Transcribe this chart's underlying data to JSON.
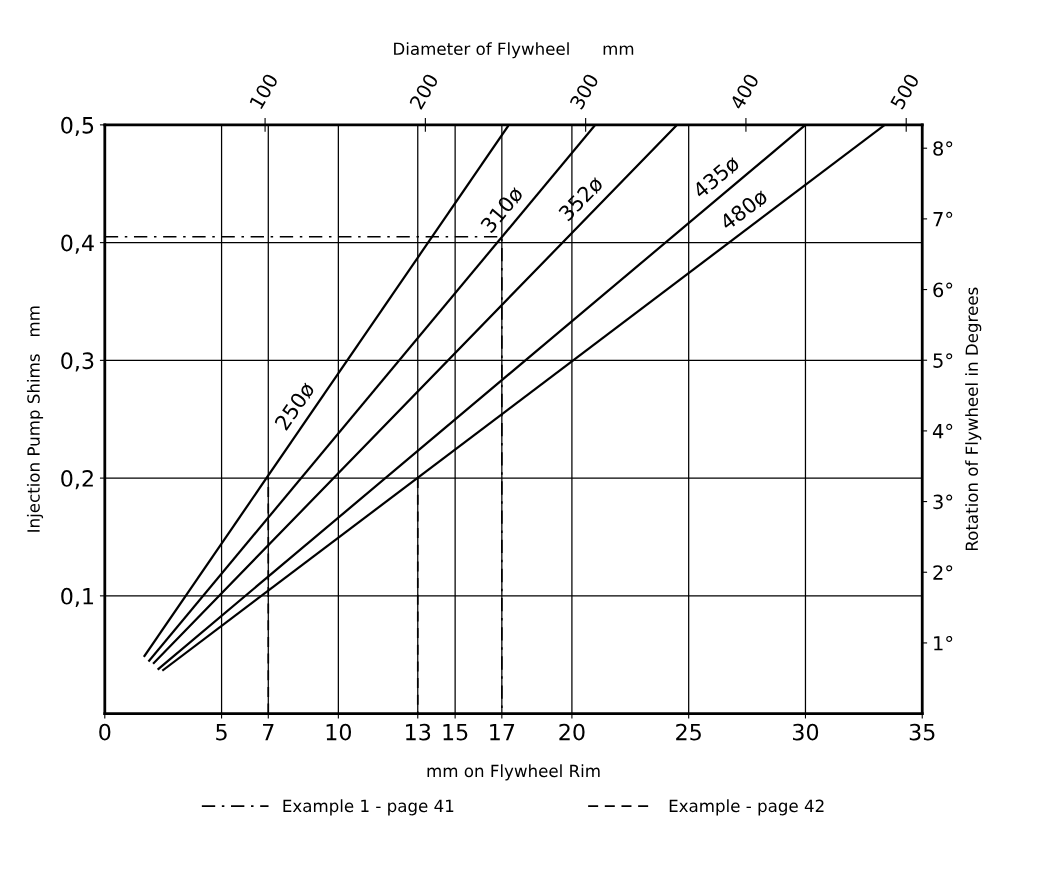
{
  "chart_data": {
    "type": "line",
    "xlabel": "mm on Flywheel Rim",
    "ylabel": "Injection Pump Shims   mm",
    "y2label": "Rotation of Flywheel in Degrees",
    "x2label": "Diameter of Flywheel      mm",
    "series": [
      {
        "name": "250ø",
        "color": "#000000",
        "x": [
          1.7,
          17.3
        ],
        "values": [
          0.049,
          0.5
        ]
      },
      {
        "name": "310ø",
        "color": "#000000",
        "x": [
          1.9,
          21.0
        ],
        "values": [
          0.045,
          0.5
        ]
      },
      {
        "name": "352ø",
        "color": "#000000",
        "x": [
          2.1,
          24.5
        ],
        "values": [
          0.043,
          0.5
        ]
      },
      {
        "name": "435ø",
        "color": "#000000",
        "x": [
          2.3,
          30.0
        ],
        "values": [
          0.038,
          0.5
        ]
      },
      {
        "name": "480ø",
        "color": "#000000",
        "x": [
          2.5,
          33.4
        ],
        "values": [
          0.037,
          0.5
        ]
      },
      {
        "name": "Example 1 - page 41",
        "color": "#000000",
        "line_style": "dashdot",
        "x": [
          0,
          17,
          17
        ],
        "values": [
          0.405,
          0.405,
          0
        ]
      },
      {
        "name": "Example - page 42",
        "color": "#000000",
        "line_style": "dashed",
        "x": [
          7,
          7,
          10,
          13.4,
          13.4
        ],
        "values": [
          0,
          0.2,
          null,
          0.2,
          0
        ]
      }
    ],
    "xlim": [
      0,
      35
    ],
    "xticks": [
      0,
      5,
      {
        "value": 7,
        "label": "7"
      },
      10,
      {
        "value": 13.4,
        "label": "13"
      },
      15,
      {
        "value": 17,
        "label": "17"
      },
      20,
      25,
      30,
      35
    ],
    "ylim": [
      0,
      0.5
    ],
    "yticks": [
      {
        "value": 0.1,
        "label": "0,1"
      },
      {
        "value": 0.2,
        "label": "0,2"
      },
      {
        "value": 0.3,
        "label": "0,3"
      },
      {
        "value": 0.4,
        "label": "0,4"
      },
      {
        "value": 0.5,
        "label": "0,5"
      }
    ],
    "y2lim": [
      0,
      8.33
    ],
    "y2ticks": [
      {
        "value": 1,
        "label": "1°"
      },
      {
        "value": 2,
        "label": "2°"
      },
      {
        "value": 3,
        "label": "3°"
      },
      {
        "value": 4,
        "label": "4°"
      },
      {
        "value": 5,
        "label": "5°"
      },
      {
        "value": 6,
        "label": "6°"
      },
      {
        "value": 7,
        "label": "7°"
      },
      {
        "value": 8,
        "label": "8°"
      }
    ],
    "x2lim": [
      0,
      510
    ],
    "x2ticks": [
      100,
      200,
      300,
      400,
      500
    ],
    "grid": true,
    "legend": "bottom"
  }
}
